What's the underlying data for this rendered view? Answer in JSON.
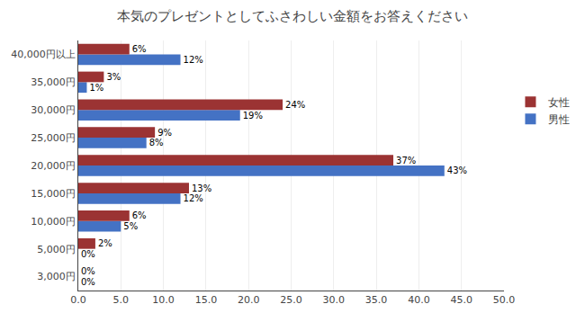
{
  "chart_data": {
    "type": "bar",
    "orientation": "horizontal",
    "title": "本気のプレゼントとしてふさわしい金額をお答えください",
    "categories": [
      "3,000円",
      "5,000円",
      "10,000円",
      "15,000円",
      "20,000円",
      "25,000円",
      "30,000円",
      "35,000円",
      "40,000円以上"
    ],
    "series": [
      {
        "name": "女性",
        "color": "#9B3333",
        "values": [
          0,
          2,
          6,
          13,
          37,
          9,
          24,
          3,
          6
        ],
        "value_labels": [
          "0%",
          "2%",
          "6%",
          "13%",
          "37%",
          "9%",
          "24%",
          "3%",
          "6%"
        ]
      },
      {
        "name": "男性",
        "color": "#4472C4",
        "values": [
          0,
          0,
          5,
          12,
          43,
          8,
          19,
          1,
          12
        ],
        "value_labels": [
          "0%",
          "0%",
          "5%",
          "12%",
          "43%",
          "8%",
          "19%",
          "1%",
          "12%"
        ]
      }
    ],
    "xlim": [
      0,
      50
    ],
    "xticks": [
      {
        "value": 0,
        "label": "0.0"
      },
      {
        "value": 5,
        "label": "5.0"
      },
      {
        "value": 10,
        "label": "10.0"
      },
      {
        "value": 15,
        "label": "15.0"
      },
      {
        "value": 20,
        "label": "20.0"
      },
      {
        "value": 25,
        "label": "25.0"
      },
      {
        "value": 30,
        "label": "30.0"
      },
      {
        "value": 35,
        "label": "35.0"
      },
      {
        "value": 40,
        "label": "40.0"
      },
      {
        "value": 45,
        "label": "45.0"
      },
      {
        "value": 50,
        "label": "50.0"
      }
    ],
    "grid": true,
    "legend": "right",
    "data_labels": true
  }
}
